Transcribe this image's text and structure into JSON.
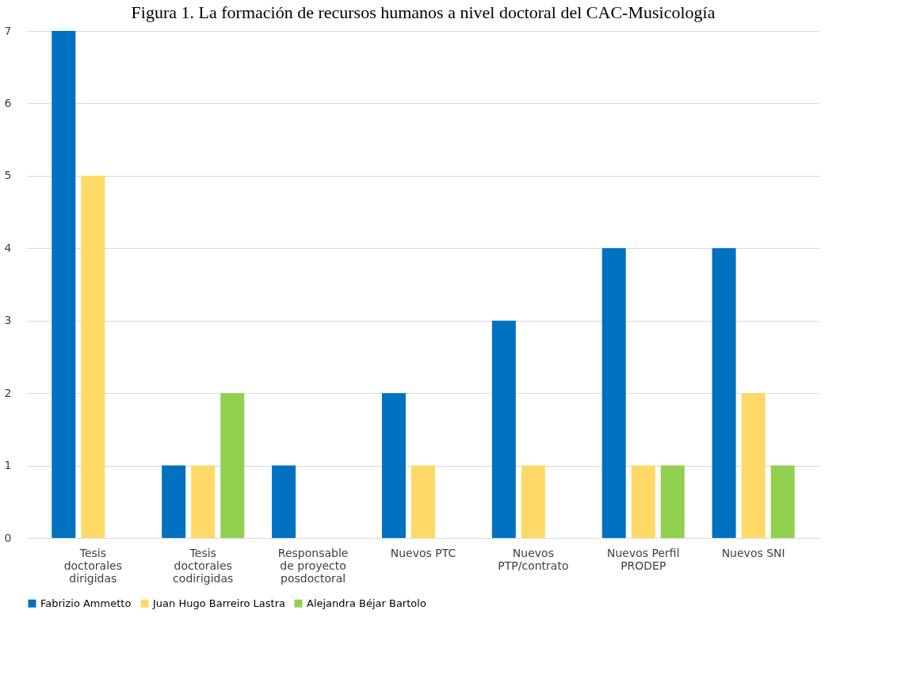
{
  "chart_data": {
    "type": "bar",
    "title": "Figura 1. La formación de recursos humanos a nivel doctoral del CAC-Musicología",
    "categories": [
      "Tesis doctorales dirigidas",
      "Tesis doctorales codirigidas",
      "Responsable de proyecto posdoctoral",
      "Nuevos PTC",
      "Nuevos PTP/contrato",
      "Nuevos Perfil PRODEP",
      "Nuevos SNI"
    ],
    "series": [
      {
        "name": "Fabrizio Ammetto",
        "color": "#0070c0",
        "values": [
          7,
          1,
          1,
          2,
          3,
          4,
          4
        ]
      },
      {
        "name": "Juan Hugo Barreiro Lastra",
        "color": "#ffd966",
        "values": [
          5,
          1,
          0,
          1,
          1,
          1,
          2
        ]
      },
      {
        "name": "Alejandra Béjar Bartolo",
        "color": "#92d050",
        "values": [
          0,
          2,
          0,
          0,
          0,
          1,
          1
        ]
      }
    ],
    "ylim": [
      0,
      7
    ],
    "yticks": [
      0,
      1,
      2,
      3,
      4,
      5,
      6,
      7
    ],
    "grid": "y",
    "legend": "bottom"
  }
}
